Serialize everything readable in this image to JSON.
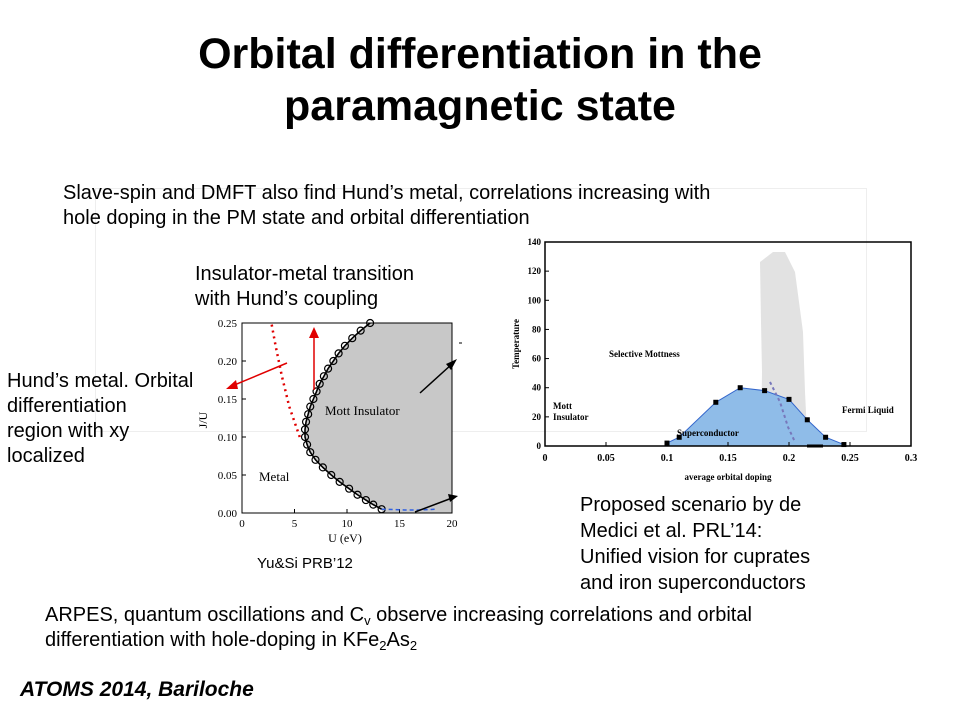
{
  "slide": {
    "title_line1": "Orbital differentiation in the",
    "title_line2": "paramagnetic state",
    "intro_line1": "Slave-spin and DMFT also find Hund’s metal, correlations increasing with",
    "intro_line2": "hole doping in the PM state and orbital differentiation",
    "imt_line1": "Insulator-metal transition",
    "imt_line2": "with Hund’s coupling",
    "hund_line1": "Hund’s metal. Orbital",
    "hund_line2": "differentiation",
    "hund_line3": "region with xy",
    "hund_line4": "localized",
    "cite_left": "Yu&Si PRB’12",
    "proposed_line1": "Proposed scenario by de",
    "proposed_line2": "Medici et al. PRL’14:",
    "proposed_line3": "Unified vision for cuprates",
    "proposed_line4": "and iron superconductors",
    "arpes_a": "ARPES, quantum oscillations and C",
    "arpes_sub_v": "v",
    "arpes_b": " observe increasing correlations and orbital",
    "arpes_c": "differentiation with hole-doping in KFe",
    "arpes_sub_2a": "2",
    "arpes_d": "As",
    "arpes_sub_2b": "2",
    "footer": "ATOMS 2014, Bariloche"
  },
  "chart_data": [
    {
      "type": "line",
      "xlabel": "U (eV)",
      "ylabel": "J/U",
      "xlim": [
        0,
        20
      ],
      "ylim": [
        0,
        0.25
      ],
      "xticks": [
        "0",
        "5",
        "10",
        "15",
        "20"
      ],
      "yticks": [
        "0.00",
        "0.05",
        "0.10",
        "0.15",
        "0.20",
        "0.25"
      ],
      "regions": [
        "Mott Insulator",
        "Metal"
      ],
      "series": [
        {
          "values": [
            [
              13.3,
              0.005
            ],
            [
              12.5,
              0.011
            ],
            [
              11.8,
              0.017
            ],
            [
              11.0,
              0.024
            ],
            [
              10.2,
              0.032
            ],
            [
              9.3,
              0.041
            ],
            [
              8.5,
              0.05
            ],
            [
              7.7,
              0.06
            ],
            [
              7.0,
              0.07
            ],
            [
              6.5,
              0.08
            ],
            [
              6.2,
              0.09
            ],
            [
              6.0,
              0.1
            ],
            [
              6.0,
              0.11
            ],
            [
              6.1,
              0.12
            ],
            [
              6.3,
              0.13
            ],
            [
              6.5,
              0.14
            ],
            [
              6.8,
              0.15
            ],
            [
              7.1,
              0.16
            ],
            [
              7.4,
              0.17
            ],
            [
              7.8,
              0.18
            ],
            [
              8.2,
              0.19
            ],
            [
              8.7,
              0.2
            ],
            [
              9.2,
              0.21
            ],
            [
              9.8,
              0.22
            ],
            [
              10.5,
              0.23
            ],
            [
              11.3,
              0.24
            ],
            [
              12.2,
              0.25
            ]
          ],
          "color": "#000000"
        },
        {
          "values": [
            [
              5.5,
              0.1
            ],
            [
              4.5,
              0.14
            ],
            [
              3.8,
              0.18
            ],
            [
              3.2,
              0.22
            ],
            [
              2.8,
              0.25
            ]
          ],
          "color": "#e00000"
        },
        {
          "values": [
            [
              13.3,
              0.005
            ],
            [
              15.5,
              0.004
            ],
            [
              17.0,
              0.004
            ],
            [
              18.5,
              0.005
            ]
          ],
          "color": "#3060e0"
        }
      ]
    },
    {
      "type": "area",
      "xlabel": "average orbital doping",
      "ylabel": "Temperature",
      "xlim": [
        0,
        0.3
      ],
      "ylim": [
        0,
        140
      ],
      "xticks": [
        "0",
        "0.05",
        "0.1",
        "0.15",
        "0.2",
        "0.25",
        "0.3"
      ],
      "yticks": [
        "0",
        "20",
        "40",
        "60",
        "80",
        "100",
        "120",
        "140"
      ],
      "regions": [
        "Selective Mottness",
        "Mott Insulator",
        "Superconductor",
        "Fermi Liquid"
      ],
      "series": [
        {
          "values": [
            [
              0.1,
              2
            ],
            [
              0.11,
              6
            ],
            [
              0.14,
              30
            ],
            [
              0.16,
              40
            ],
            [
              0.18,
              38
            ],
            [
              0.2,
              32
            ],
            [
              0.215,
              18
            ],
            [
              0.23,
              6
            ],
            [
              0.245,
              1
            ]
          ],
          "color": "#5599e6"
        }
      ]
    }
  ]
}
